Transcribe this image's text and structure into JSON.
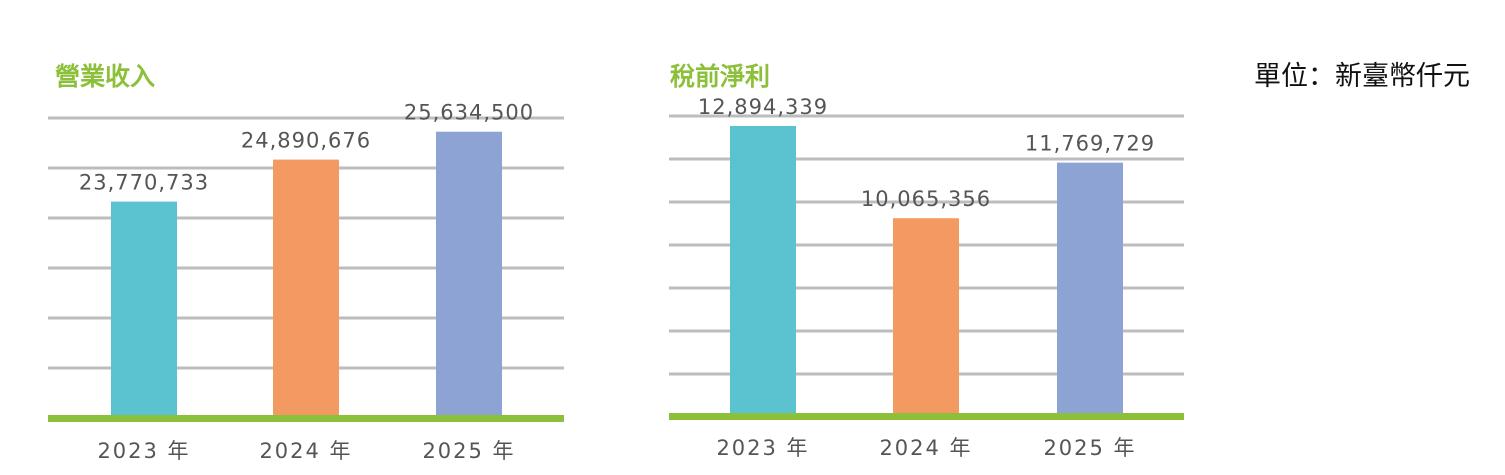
{
  "unit_label": "單位：新臺幣仟元",
  "colors": {
    "title": "#8DC03A",
    "baseline": "#8DC03A",
    "grid": "#BDBDBD",
    "label": "#555555"
  },
  "chart_data": [
    {
      "type": "bar",
      "title": "營業收入",
      "categories": [
        "2023 年",
        "2024 年",
        "2025 年"
      ],
      "values": [
        23770733,
        24890676,
        25634500
      ],
      "value_labels": [
        "23,770,733",
        "24,890,676",
        "25,634,500"
      ],
      "colors": [
        "#5BC2CF",
        "#F39A62",
        "#8CA3D4"
      ],
      "ylim": [
        18000000,
        26000000
      ],
      "grid": true
    },
    {
      "type": "bar",
      "title": "稅前淨利",
      "categories": [
        "2023 年",
        "2024 年",
        "2025 年"
      ],
      "values": [
        12894339,
        10065356,
        11769729
      ],
      "value_labels": [
        "12,894,339",
        "10,065,356",
        "11,769,729"
      ],
      "colors": [
        "#5BC2CF",
        "#F39A62",
        "#8CA3D4"
      ],
      "ylim": [
        4000000,
        13200000
      ],
      "grid": true
    }
  ]
}
